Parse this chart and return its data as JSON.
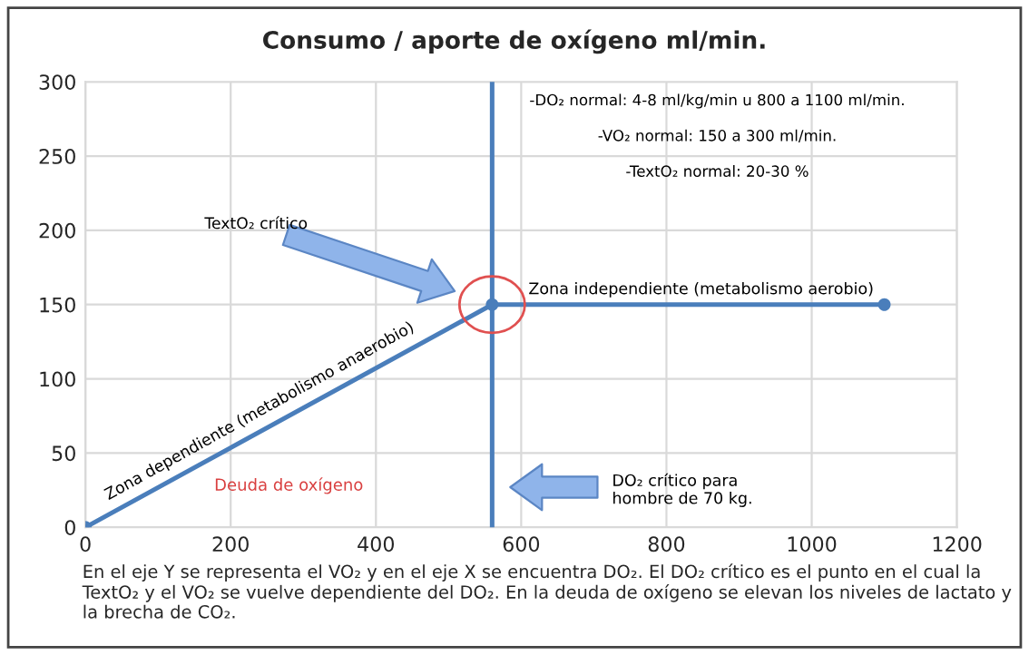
{
  "chart_data": {
    "type": "line",
    "title": "Consumo / aporte de oxígeno ml/min.",
    "x": [
      0,
      560,
      1100
    ],
    "series": [
      {
        "color": "#4a7ebb",
        "values": [
          0,
          150,
          150
        ]
      }
    ],
    "xlim": [
      0,
      1200
    ],
    "xticks": [
      0,
      200,
      400,
      600,
      800,
      1000,
      1200
    ],
    "ylim": [
      0,
      300
    ],
    "yticks": [
      0,
      50,
      100,
      150,
      200,
      250,
      300
    ],
    "grid": true,
    "marker": "circle",
    "line_style": "solid",
    "ref_lines": [
      {
        "axis": "x",
        "value": 560,
        "color": "#4a7ebb"
      }
    ],
    "annotations": [
      "-DO₂ normal: 4-8 ml/kg/min u 800 a 1100 ml/min.",
      "-VO₂ normal: 150 a 300 ml/min.",
      "-TextO₂ normal: 20-30 %",
      "TextO₂ crítico",
      "Zona independiente (metabolismo aerobio)",
      "Zona dependiente (metabolismo anaerobio)",
      "Deuda de oxígeno",
      "DO₂ crítico para\nhombre de 70 kg.",
      "En el eje Y se representa el VO₂ y en el eje X se encuentra DO₂. El DO₂ crítico es el punto en el cual la TextO₂ y el VO₂ se vuelve dependiente del DO₂. En la deuda de oxígeno se elevan los niveles de lactato y la brecha de CO₂."
    ]
  }
}
